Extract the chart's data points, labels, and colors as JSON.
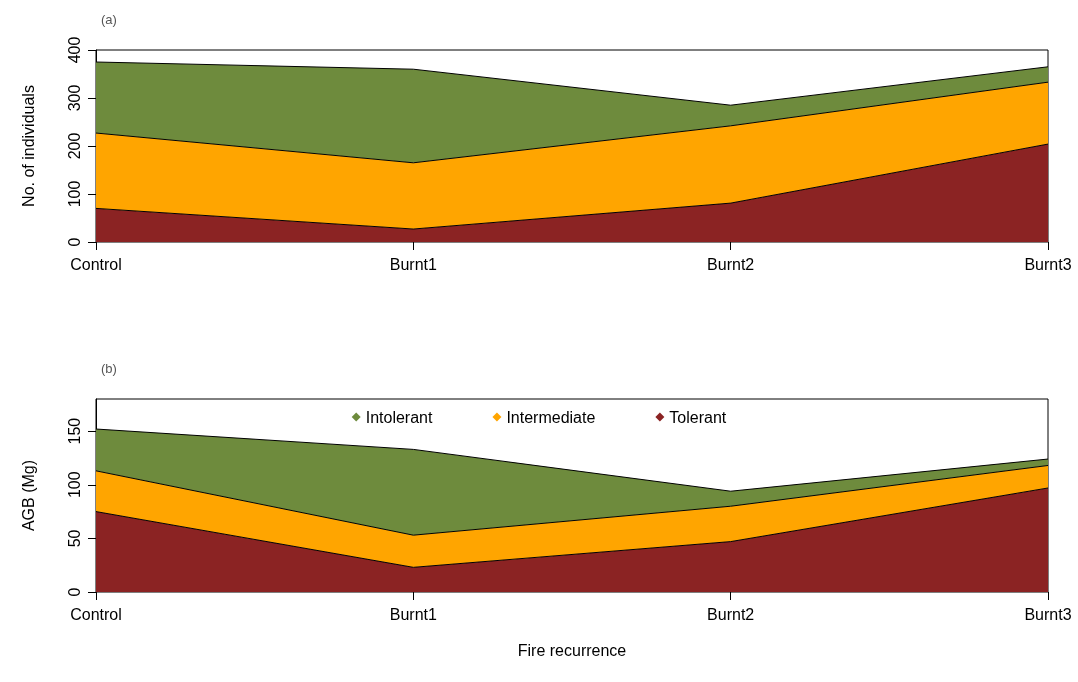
{
  "chart_data": [
    {
      "type": "area",
      "stacked": true,
      "annotations": [
        "(a)"
      ],
      "ylabel": "No. of individuals",
      "categories": [
        "Control",
        "Burnt1",
        "Burnt2",
        "Burnt3"
      ],
      "ylim": [
        0,
        400
      ],
      "yticks": [
        0,
        100,
        200,
        300,
        400
      ],
      "grid": false,
      "legend": false,
      "series": [
        {
          "color": "#8b2323",
          "values": [
            70,
            27,
            81,
            204
          ]
        },
        {
          "color": "#ffa500",
          "values": [
            157,
            138,
            161,
            129
          ]
        },
        {
          "color": "#6e8b3d",
          "values": [
            148,
            195,
            43,
            32
          ]
        }
      ]
    },
    {
      "type": "area",
      "stacked": true,
      "annotations": [
        "(b)"
      ],
      "ylabel": "AGB (Mg)",
      "xlabel": "Fire recurrence",
      "categories": [
        "Control",
        "Burnt1",
        "Burnt2",
        "Burnt3"
      ],
      "ylim": [
        0,
        180
      ],
      "yticks": [
        0,
        50,
        100,
        150
      ],
      "grid": false,
      "legend": "top",
      "series": [
        {
          "name": "Tolerant",
          "color": "#8b2323",
          "values": [
            75,
            23,
            47,
            97
          ]
        },
        {
          "name": "Intermediate",
          "color": "#ffa500",
          "values": [
            38,
            30,
            33,
            21
          ]
        },
        {
          "name": "Intolerant",
          "color": "#6e8b3d",
          "values": [
            39,
            80,
            14,
            6
          ]
        }
      ]
    }
  ]
}
